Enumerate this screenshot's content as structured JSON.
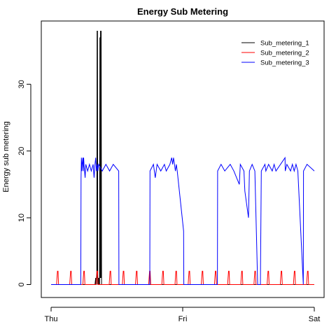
{
  "chart_data": {
    "type": "line",
    "title": "Energy Sub Metering",
    "xlabel": "",
    "ylabel": "Energy sub metering",
    "x_ticks": [
      {
        "label": "Thu",
        "value": 0
      },
      {
        "label": "Fri",
        "value": 1440
      },
      {
        "label": "Sat",
        "value": 2880
      }
    ],
    "y_ticks": [
      0,
      10,
      20,
      30
    ],
    "xlim": [
      0,
      2880
    ],
    "ylim": [
      0,
      38
    ],
    "grid": false,
    "legend_position": "top-right",
    "series": [
      {
        "name": "Sub_metering_1",
        "color": "#000000",
        "x": [
          0,
          480,
          488,
          490,
          493,
          496,
          500,
          503,
          505,
          508,
          510,
          515,
          520,
          523,
          526,
          528,
          530,
          534,
          538,
          541,
          545,
          548,
          552,
          560,
          2880
        ],
        "values": [
          0,
          0,
          1,
          0,
          1,
          0,
          1,
          38,
          1,
          38,
          0,
          1,
          0,
          1,
          0,
          1,
          0,
          37,
          1,
          38,
          1,
          38,
          0,
          0,
          0
        ]
      },
      {
        "name": "Sub_metering_2",
        "color": "#ff0000",
        "x": [
          0,
          60,
          64,
          70,
          76,
          82,
          2880
        ],
        "values": [
          0,
          0,
          1,
          2,
          2,
          0,
          0
        ]
      },
      {
        "name": "Sub_metering_3",
        "color": "#0000ff",
        "x": [
          0,
          325,
          328,
          332,
          336,
          340,
          348,
          352,
          356,
          360,
          372,
          380,
          400,
          420,
          440,
          460,
          470,
          480,
          488,
          496,
          504,
          512,
          520,
          560,
          600,
          640,
          680,
          740,
          742,
          1080,
          1082,
          1120,
          1140,
          1160,
          1200,
          1240,
          1260,
          1300,
          1320,
          1330,
          1340,
          1360,
          1370,
          1380,
          1450,
          1452,
          1820,
          1822,
          1860,
          1900,
          1960,
          2000,
          2030,
          2060,
          2070,
          2110,
          2120,
          2160,
          2170,
          2200,
          2230,
          2260,
          2290,
          2300,
          2340,
          2350,
          2380,
          2420,
          2440,
          2460,
          2560,
          2562,
          2580,
          2620,
          2640,
          2660,
          2680,
          2700,
          2760,
          2762,
          2800,
          2880
        ],
        "values": [
          0,
          0,
          16,
          19,
          17,
          18,
          19,
          17,
          19,
          18,
          16,
          18,
          17,
          18,
          17,
          18,
          16,
          18,
          19,
          17,
          18,
          17,
          18,
          17,
          18,
          17,
          18,
          17,
          0,
          0,
          17,
          18,
          16,
          18,
          17,
          18,
          17,
          18,
          19,
          18,
          19,
          17,
          18,
          17,
          8,
          0,
          0,
          17,
          18,
          17,
          18,
          17,
          16,
          15,
          18,
          17,
          14,
          10,
          17,
          18,
          17,
          0,
          0,
          17,
          18,
          17,
          18,
          17,
          18,
          17,
          19,
          17,
          18,
          17,
          18,
          17,
          18,
          17,
          0,
          17,
          18,
          17
        ]
      }
    ]
  }
}
